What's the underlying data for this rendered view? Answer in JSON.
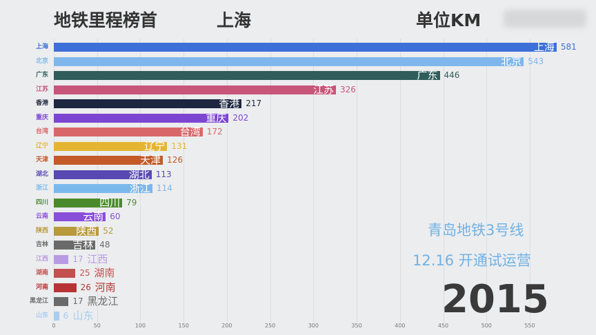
{
  "header": {
    "title": "地铁里程榜首",
    "leader": "上海",
    "unit": "单位KM"
  },
  "annotation": {
    "line1": "青岛地铁3号线",
    "line2": "12.16  开通试运营"
  },
  "year": "2015",
  "chart_data": {
    "type": "bar",
    "orientation": "horizontal",
    "xlim": [
      0,
      580
    ],
    "xticks": [
      0,
      50,
      100,
      150,
      200,
      250,
      300,
      350,
      400,
      450,
      500,
      550
    ],
    "grid": true,
    "bars": [
      {
        "name": "上海",
        "value": 581,
        "color": "#3d6fd8"
      },
      {
        "name": "北京",
        "value": 543,
        "color": "#7fb7ec"
      },
      {
        "name": "广东",
        "value": 446,
        "color": "#2f5d5b"
      },
      {
        "name": "江苏",
        "value": 326,
        "color": "#c8557a"
      },
      {
        "name": "香港",
        "value": 217,
        "color": "#1e2740"
      },
      {
        "name": "重庆",
        "value": 202,
        "color": "#7d46d2"
      },
      {
        "name": "台湾",
        "value": 172,
        "color": "#d9676a"
      },
      {
        "name": "辽宁",
        "value": 131,
        "color": "#e5b532"
      },
      {
        "name": "天津",
        "value": 126,
        "color": "#c35a28"
      },
      {
        "name": "湖北",
        "value": 113,
        "color": "#5849b2"
      },
      {
        "name": "浙江",
        "value": 114,
        "color": "#7ab8ec"
      },
      {
        "name": "四川",
        "value": 79,
        "color": "#4a8a2d"
      },
      {
        "name": "云南",
        "value": 60,
        "color": "#8a4fd8"
      },
      {
        "name": "陕西",
        "value": 52,
        "color": "#b99a3b"
      },
      {
        "name": "吉林",
        "value": 48,
        "color": "#6a6a6a"
      },
      {
        "name": "江西",
        "value": 17,
        "color": "#b89be2"
      },
      {
        "name": "湖南",
        "value": 25,
        "color": "#c25050"
      },
      {
        "name": "河南",
        "value": 26,
        "color": "#b83434"
      },
      {
        "name": "黑龙江",
        "value": 17,
        "color": "#6a6a6a"
      },
      {
        "name": "山东",
        "value": 6,
        "color": "#a8cdef"
      }
    ]
  }
}
